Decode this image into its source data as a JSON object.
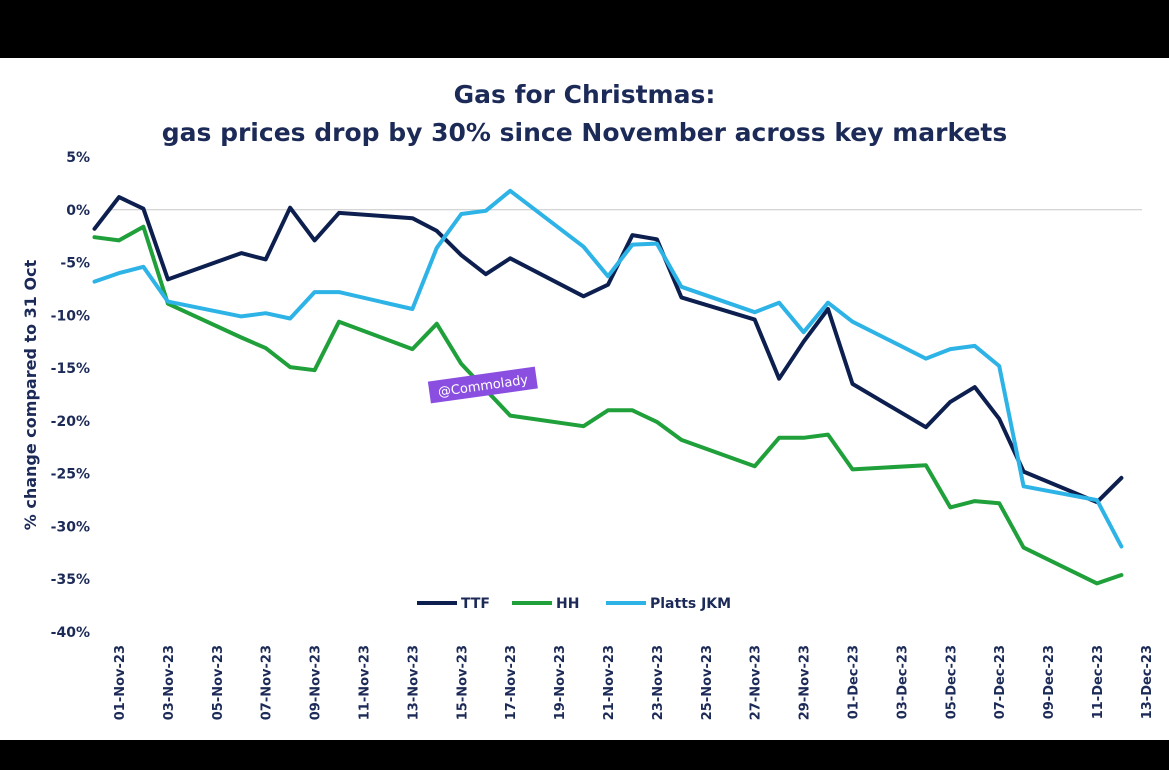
{
  "chart_data": {
    "type": "line",
    "title": "Gas for Christmas:",
    "subtitle": "gas prices drop by 30% since November across key markets",
    "ylabel": "% change compared to 31 Oct",
    "xlabel": "",
    "ylim": [
      -40,
      5
    ],
    "yticks": [
      "5%",
      "0%",
      "-5%",
      "-10%",
      "-15%",
      "-20%",
      "-25%",
      "-30%",
      "-35%",
      "-40%"
    ],
    "x_range": [
      "2023-11-01",
      "2023-12-13"
    ],
    "xticks": [
      "01-Nov-23",
      "03-Nov-23",
      "05-Nov-23",
      "07-Nov-23",
      "09-Nov-23",
      "11-Nov-23",
      "13-Nov-23",
      "15-Nov-23",
      "17-Nov-23",
      "19-Nov-23",
      "21-Nov-23",
      "23-Nov-23",
      "25-Nov-23",
      "27-Nov-23",
      "29-Nov-23",
      "01-Dec-23",
      "03-Dec-23",
      "05-Dec-23",
      "07-Dec-23",
      "09-Dec-23",
      "11-Dec-23",
      "13-Dec-23"
    ],
    "grid": "zero line only",
    "legend_position": "bottom-center",
    "annotation": "@Commolady",
    "series": [
      {
        "name": "TTF",
        "color": "#0d1f4f",
        "points": [
          [
            "2023-10-31",
            -1.8
          ],
          [
            "2023-11-01",
            1.2
          ],
          [
            "2023-11-02",
            0.1
          ],
          [
            "2023-11-03",
            -6.6
          ],
          [
            "2023-11-06",
            -4.1
          ],
          [
            "2023-11-07",
            -4.7
          ],
          [
            "2023-11-08",
            0.2
          ],
          [
            "2023-11-09",
            -2.9
          ],
          [
            "2023-11-10",
            -0.3
          ],
          [
            "2023-11-13",
            -0.8
          ],
          [
            "2023-11-14",
            -2.0
          ],
          [
            "2023-11-15",
            -4.3
          ],
          [
            "2023-11-16",
            -6.1
          ],
          [
            "2023-11-17",
            -4.6
          ],
          [
            "2023-11-20",
            -8.2
          ],
          [
            "2023-11-21",
            -7.1
          ],
          [
            "2023-11-22",
            -2.4
          ],
          [
            "2023-11-23",
            -2.8
          ],
          [
            "2023-11-24",
            -8.3
          ],
          [
            "2023-11-27",
            -10.4
          ],
          [
            "2023-11-28",
            -16.0
          ],
          [
            "2023-11-29",
            -12.5
          ],
          [
            "2023-11-30",
            -9.4
          ],
          [
            "2023-12-01",
            -16.5
          ],
          [
            "2023-12-04",
            -20.6
          ],
          [
            "2023-12-05",
            -18.2
          ],
          [
            "2023-12-06",
            -16.8
          ],
          [
            "2023-12-07",
            -19.8
          ],
          [
            "2023-12-08",
            -24.8
          ],
          [
            "2023-12-11",
            -27.7
          ],
          [
            "2023-12-12",
            -25.4
          ]
        ]
      },
      {
        "name": "HH",
        "color": "#1fa03a",
        "points": [
          [
            "2023-10-31",
            -2.6
          ],
          [
            "2023-11-01",
            -2.9
          ],
          [
            "2023-11-02",
            -1.6
          ],
          [
            "2023-11-03",
            -8.9
          ],
          [
            "2023-11-06",
            -12.1
          ],
          [
            "2023-11-07",
            -13.1
          ],
          [
            "2023-11-08",
            -14.9
          ],
          [
            "2023-11-09",
            -15.2
          ],
          [
            "2023-11-10",
            -10.6
          ],
          [
            "2023-11-13",
            -13.2
          ],
          [
            "2023-11-14",
            -10.8
          ],
          [
            "2023-11-15",
            -14.6
          ],
          [
            "2023-11-17",
            -19.5
          ],
          [
            "2023-11-20",
            -20.5
          ],
          [
            "2023-11-21",
            -19.0
          ],
          [
            "2023-11-22",
            -19.0
          ],
          [
            "2023-11-23",
            -20.1
          ],
          [
            "2023-11-24",
            -21.8
          ],
          [
            "2023-11-27",
            -24.3
          ],
          [
            "2023-11-28",
            -21.6
          ],
          [
            "2023-11-29",
            -21.6
          ],
          [
            "2023-11-30",
            -21.3
          ],
          [
            "2023-12-01",
            -24.6
          ],
          [
            "2023-12-04",
            -24.2
          ],
          [
            "2023-12-05",
            -28.2
          ],
          [
            "2023-12-06",
            -27.6
          ],
          [
            "2023-12-07",
            -27.8
          ],
          [
            "2023-12-08",
            -32.0
          ],
          [
            "2023-12-11",
            -35.4
          ],
          [
            "2023-12-12",
            -34.6
          ]
        ]
      },
      {
        "name": "Platts JKM",
        "color": "#2eb3e6",
        "points": [
          [
            "2023-10-31",
            -6.8
          ],
          [
            "2023-11-01",
            -6.0
          ],
          [
            "2023-11-02",
            -5.4
          ],
          [
            "2023-11-03",
            -8.7
          ],
          [
            "2023-11-06",
            -10.1
          ],
          [
            "2023-11-07",
            -9.8
          ],
          [
            "2023-11-08",
            -10.3
          ],
          [
            "2023-11-09",
            -7.8
          ],
          [
            "2023-11-10",
            -7.8
          ],
          [
            "2023-11-13",
            -9.4
          ],
          [
            "2023-11-14",
            -3.6
          ],
          [
            "2023-11-15",
            -0.4
          ],
          [
            "2023-11-16",
            -0.1
          ],
          [
            "2023-11-17",
            1.8
          ],
          [
            "2023-11-20",
            -3.5
          ],
          [
            "2023-11-21",
            -6.3
          ],
          [
            "2023-11-22",
            -3.3
          ],
          [
            "2023-11-23",
            -3.2
          ],
          [
            "2023-11-24",
            -7.3
          ],
          [
            "2023-11-27",
            -9.7
          ],
          [
            "2023-11-28",
            -8.8
          ],
          [
            "2023-11-29",
            -11.6
          ],
          [
            "2023-11-30",
            -8.8
          ],
          [
            "2023-12-01",
            -10.6
          ],
          [
            "2023-12-04",
            -14.1
          ],
          [
            "2023-12-05",
            -13.2
          ],
          [
            "2023-12-06",
            -12.9
          ],
          [
            "2023-12-07",
            -14.8
          ],
          [
            "2023-12-08",
            -26.2
          ],
          [
            "2023-12-11",
            -27.5
          ],
          [
            "2023-12-12",
            -31.9
          ]
        ]
      }
    ]
  }
}
